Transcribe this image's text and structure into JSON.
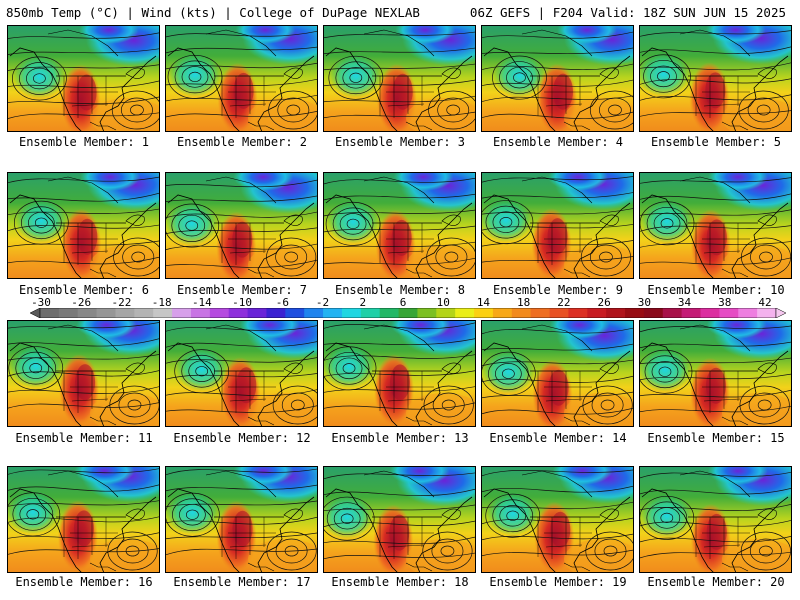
{
  "header": {
    "left": "850mb Temp (°C) | Wind (kts) | College of DuPage NEXLAB",
    "right": "06Z GEFS | F204 Valid: 18Z SUN JUN 15 2025"
  },
  "colorbar": {
    "ticks": [
      "-30",
      "-26",
      "-22",
      "-18",
      "-14",
      "-10",
      "-6",
      "-2",
      "2",
      "6",
      "10",
      "14",
      "18",
      "22",
      "26",
      "30",
      "34",
      "38",
      "42"
    ],
    "colors": [
      "#6e6e6e",
      "#7a7a7a",
      "#888888",
      "#969696",
      "#a6a6a6",
      "#b4b4b4",
      "#c6c6c6",
      "#d7a0ea",
      "#c874e4",
      "#b54ae0",
      "#8e30dc",
      "#6a24d8",
      "#3b22d2",
      "#1f4fe0",
      "#1f84ee",
      "#22b3f2",
      "#1fd6e2",
      "#1fd0a8",
      "#22b866",
      "#38a636",
      "#7cc022",
      "#b4d418",
      "#eaee18",
      "#fbd012",
      "#f7a818",
      "#f28a1c",
      "#ee6e22",
      "#e85224",
      "#dc3024",
      "#c81c22",
      "#b0141c",
      "#980c14",
      "#8a0a1c",
      "#a8124a",
      "#c41c76",
      "#dc2ea0",
      "#e64cc4",
      "#ee7ee0",
      "#f4b2ee"
    ]
  },
  "panels": [
    {
      "label": "Ensemble Member: 1"
    },
    {
      "label": "Ensemble Member: 2"
    },
    {
      "label": "Ensemble Member: 3"
    },
    {
      "label": "Ensemble Member: 4"
    },
    {
      "label": "Ensemble Member: 5"
    },
    {
      "label": "Ensemble Member: 6"
    },
    {
      "label": "Ensemble Member: 7"
    },
    {
      "label": "Ensemble Member: 8"
    },
    {
      "label": "Ensemble Member: 9"
    },
    {
      "label": "Ensemble Member: 10"
    },
    {
      "label": "Ensemble Member: 11"
    },
    {
      "label": "Ensemble Member: 12"
    },
    {
      "label": "Ensemble Member: 13"
    },
    {
      "label": "Ensemble Member: 14"
    },
    {
      "label": "Ensemble Member: 15"
    },
    {
      "label": "Ensemble Member: 16"
    },
    {
      "label": "Ensemble Member: 17"
    },
    {
      "label": "Ensemble Member: 18"
    },
    {
      "label": "Ensemble Member: 19"
    },
    {
      "label": "Ensemble Member: 20"
    }
  ]
}
